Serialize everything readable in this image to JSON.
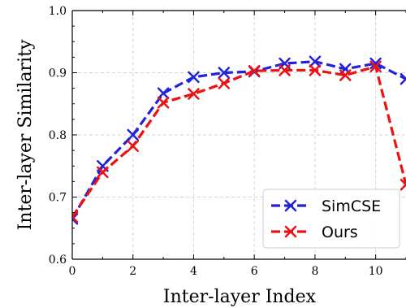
{
  "chart_data": {
    "type": "line",
    "xlabel": "Inter-layer Index",
    "ylabel": "Inter-layer Similarity",
    "xlim": [
      0,
      11
    ],
    "ylim": [
      0.6,
      1.0
    ],
    "x_ticks": [
      0,
      2,
      4,
      6,
      8,
      10
    ],
    "y_ticks": [
      0.6,
      0.7,
      0.8,
      0.9,
      1.0
    ],
    "grid": true,
    "legend_position": "lower-right",
    "x": [
      0,
      1,
      2,
      3,
      4,
      5,
      6,
      7,
      8,
      9,
      10,
      11
    ],
    "series": [
      {
        "name": "SimCSE",
        "color": "#2222dd",
        "marker": "x",
        "line_style": "dashed",
        "values": [
          0.665,
          0.75,
          0.8,
          0.867,
          0.893,
          0.9,
          0.902,
          0.915,
          0.918,
          0.906,
          0.915,
          0.89
        ]
      },
      {
        "name": "Ours",
        "color": "#ee1111",
        "marker": "x",
        "line_style": "dashed",
        "values": [
          0.668,
          0.74,
          0.782,
          0.852,
          0.866,
          0.883,
          0.903,
          0.904,
          0.904,
          0.896,
          0.91,
          0.72
        ]
      }
    ]
  }
}
